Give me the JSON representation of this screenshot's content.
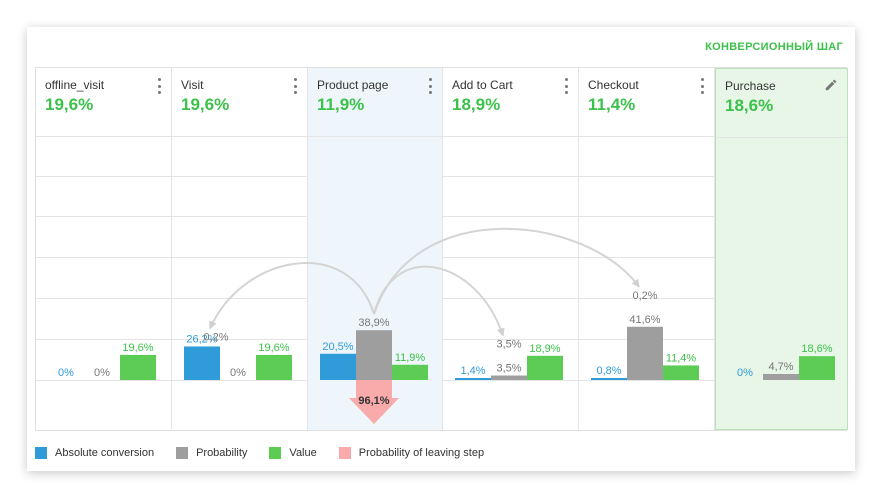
{
  "conversion_step_label": "КОНВЕРСИОННЫЙ ШАГ",
  "colors": {
    "absolute": "#2f9bd9",
    "probability": "#9e9e9e",
    "value": "#5ccc55",
    "leaving": "#f9aaaa",
    "accent": "#3cc14a"
  },
  "chart_data": {
    "type": "bar",
    "categories": [
      "offline_visit",
      "Visit",
      "Product page",
      "Add to Cart",
      "Checkout",
      "Purchase"
    ],
    "step_values": [
      "19,6%",
      "19,6%",
      "11,9%",
      "18,9%",
      "11,4%",
      "18,6%"
    ],
    "series": [
      {
        "name": "Absolute conversion",
        "values": [
          0,
          26.2,
          20.5,
          1.4,
          0.8,
          0
        ],
        "labels": [
          "0%",
          "26,2%",
          "20,5%",
          "1,4%",
          "0,8%",
          "0%"
        ]
      },
      {
        "name": "Probability",
        "values": [
          0,
          0,
          38.9,
          3.5,
          41.6,
          4.7
        ],
        "labels": [
          "0%",
          "0%",
          "38,9%",
          "3,5%",
          "41,6%",
          "4,7%"
        ]
      },
      {
        "name": "Value",
        "values": [
          19.6,
          19.6,
          11.9,
          18.9,
          11.4,
          18.6
        ],
        "labels": [
          "19,6%",
          "19,6%",
          "11,9%",
          "18,9%",
          "11,4%",
          "18,6%"
        ]
      },
      {
        "name": "Probability of leaving step",
        "values": [
          null,
          null,
          96.1,
          null,
          null,
          null
        ],
        "labels": [
          "",
          "",
          "96,1%",
          "",
          "",
          ""
        ]
      }
    ],
    "transitions": [
      {
        "from": "Product page",
        "to": "Visit",
        "label": "0,2%"
      },
      {
        "from": "Product page",
        "to": "Add to Cart",
        "label": "3,5%"
      },
      {
        "from": "Product page",
        "to": "Checkout",
        "label": "0,2%"
      }
    ],
    "highlighted_step": "Product page",
    "conversion_step": "Purchase",
    "ylim": [
      0,
      100
    ],
    "grid": true,
    "legend_position": "bottom-left"
  },
  "legend": [
    {
      "label": "Absolute conversion",
      "color": "#2f9bd9"
    },
    {
      "label": "Probability",
      "color": "#9e9e9e"
    },
    {
      "label": "Value",
      "color": "#5ccc55"
    },
    {
      "label": "Probability of leaving step",
      "color": "#f9aaaa"
    }
  ]
}
